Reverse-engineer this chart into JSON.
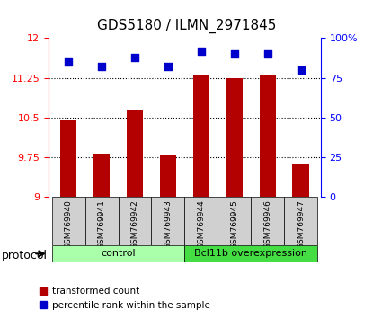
{
  "title": "GDS5180 / ILMN_2971845",
  "samples": [
    "GSM769940",
    "GSM769941",
    "GSM769942",
    "GSM769943",
    "GSM769944",
    "GSM769945",
    "GSM769946",
    "GSM769947"
  ],
  "red_values": [
    10.45,
    9.82,
    10.65,
    9.78,
    11.32,
    11.25,
    11.32,
    9.62
  ],
  "blue_values": [
    85,
    82,
    88,
    82,
    92,
    90,
    90,
    80
  ],
  "ylim_left": [
    9,
    12
  ],
  "ylim_right": [
    0,
    100
  ],
  "yticks_left": [
    9,
    9.75,
    10.5,
    11.25,
    12
  ],
  "yticks_right": [
    0,
    25,
    50,
    75,
    100
  ],
  "ytick_labels_left": [
    "9",
    "9.75",
    "10.5",
    "11.25",
    "12"
  ],
  "ytick_labels_right": [
    "0",
    "25",
    "50",
    "75",
    "100%"
  ],
  "control_samples": 4,
  "bar_color": "#b30000",
  "dot_color": "#0000cc",
  "control_color": "#aaffaa",
  "bcl_color": "#44dd44",
  "control_label": "control",
  "bcl_label": "Bcl11b overexpression",
  "protocol_label": "protocol",
  "legend_red": "transformed count",
  "legend_blue": "percentile rank within the sample",
  "background_plot": "#ffffff",
  "tick_area_bg": "#d0d0d0",
  "grid_color": "#000000",
  "bar_width": 0.5
}
